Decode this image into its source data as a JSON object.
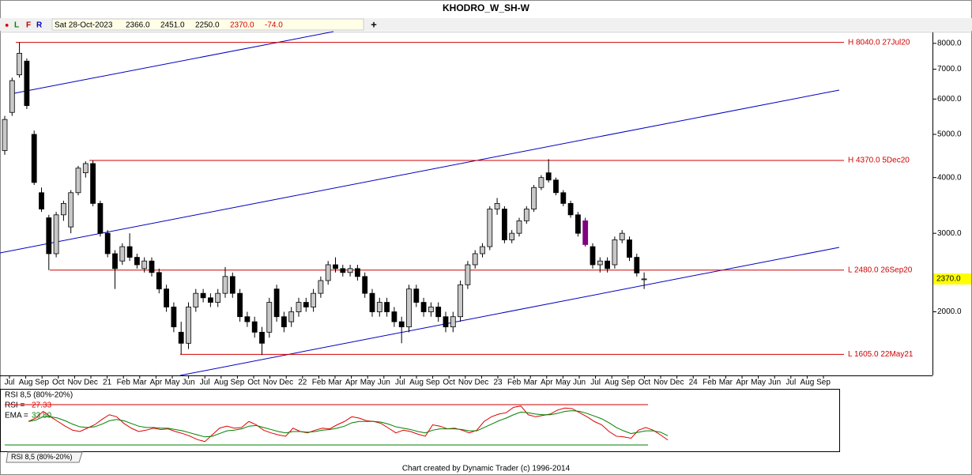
{
  "header": {
    "title": "KHODRO_W_SH-W"
  },
  "toolbar": {
    "indicators": [
      "●",
      "L",
      "F",
      "R"
    ],
    "date": "Sat 28-Oct-2023",
    "open": "2366.0",
    "high": "2451.0",
    "low": "2250.0",
    "close": "2370.0",
    "change": "-74.0",
    "add": "+"
  },
  "chart_data": {
    "type": "candlestick",
    "log_scale": true,
    "ylim": [
      1440,
      8500
    ],
    "yticks": [
      {
        "value": 8000,
        "label": "8000.0"
      },
      {
        "value": 7000,
        "label": "7000.0"
      },
      {
        "value": 6000,
        "label": "6000.0"
      },
      {
        "value": 5000,
        "label": "5000.0"
      },
      {
        "value": 4000,
        "label": "4000.0"
      },
      {
        "value": 3000,
        "label": "3000.0"
      },
      {
        "value": 2000,
        "label": "2000.0"
      }
    ],
    "last_price": {
      "value": 2370,
      "label": "2370.0"
    },
    "colors": {
      "up": "#c8c8c8",
      "down": "#000000",
      "highlight": "#800080",
      "level": "#d00000",
      "channel": "#0000c0"
    },
    "highlight_index": 79,
    "x_labels": [
      "Jul",
      "Aug",
      "Sep",
      "Oct",
      "Nov",
      "Dec",
      "21",
      "Feb",
      "Mar",
      "Apr",
      "May",
      "Jun",
      "Jul",
      "Aug",
      "Sep",
      "Oct",
      "Nov",
      "Dec",
      "22",
      "Feb",
      "Mar",
      "Apr",
      "May",
      "Jun",
      "Jul",
      "Aug",
      "Sep",
      "Oct",
      "Nov",
      "Dec",
      "23",
      "Feb",
      "Mar",
      "Apr",
      "May",
      "Jun",
      "Jul",
      "Aug",
      "Sep",
      "Oct",
      "Nov",
      "Dec",
      "24",
      "Feb",
      "Mar",
      "Apr",
      "May",
      "Jun",
      "Jul",
      "Aug",
      "Sep"
    ],
    "levels": [
      {
        "label": "H 8040.0 27Jul20",
        "value": 8040
      },
      {
        "label": "H 4370.0 5Dec20",
        "value": 4370
      },
      {
        "label": "L 2480.0 26Sep20",
        "value": 2480
      },
      {
        "label": "L 1605.0 22May21",
        "value": 1605
      }
    ],
    "candles": [
      [
        4600,
        5500,
        4500,
        5400
      ],
      [
        5600,
        6700,
        5500,
        6600
      ],
      [
        6800,
        8040,
        6700,
        7600
      ],
      [
        7300,
        7400,
        5700,
        5800
      ],
      [
        5000,
        5100,
        3850,
        3900
      ],
      [
        3700,
        3800,
        3350,
        3400
      ],
      [
        3250,
        3300,
        2480,
        2700
      ],
      [
        2700,
        3350,
        2650,
        3300
      ],
      [
        3300,
        3550,
        3200,
        3500
      ],
      [
        3100,
        3750,
        3000,
        3700
      ],
      [
        3700,
        4250,
        3650,
        4200
      ],
      [
        4100,
        4350,
        4000,
        4300
      ],
      [
        4300,
        4370,
        3450,
        3500
      ],
      [
        3500,
        3550,
        2950,
        3000
      ],
      [
        3000,
        3050,
        2650,
        2700
      ],
      [
        2700,
        2750,
        2250,
        2500
      ],
      [
        2600,
        2850,
        2550,
        2800
      ],
      [
        2800,
        3000,
        2600,
        2650
      ],
      [
        2650,
        2700,
        2500,
        2550
      ],
      [
        2500,
        2650,
        2450,
        2600
      ],
      [
        2600,
        2650,
        2400,
        2450
      ],
      [
        2450,
        2500,
        2200,
        2250
      ],
      [
        2250,
        2300,
        2000,
        2050
      ],
      [
        2050,
        2100,
        1800,
        1850
      ],
      [
        1800,
        1900,
        1605,
        1700
      ],
      [
        1700,
        2100,
        1650,
        2050
      ],
      [
        2050,
        2250,
        2000,
        2200
      ],
      [
        2200,
        2250,
        2100,
        2150
      ],
      [
        2150,
        2200,
        2050,
        2100
      ],
      [
        2100,
        2250,
        2050,
        2200
      ],
      [
        2200,
        2520,
        2150,
        2400
      ],
      [
        2400,
        2450,
        2150,
        2200
      ],
      [
        2200,
        2250,
        1900,
        1950
      ],
      [
        1950,
        2000,
        1850,
        1900
      ],
      [
        1900,
        1950,
        1750,
        1800
      ],
      [
        1800,
        1850,
        1600,
        1700
      ],
      [
        1800,
        2150,
        1750,
        2100
      ],
      [
        2250,
        2300,
        1900,
        1950
      ],
      [
        1950,
        2000,
        1800,
        1850
      ],
      [
        1900,
        2050,
        1850,
        2000
      ],
      [
        2000,
        2150,
        1950,
        2100
      ],
      [
        2100,
        2150,
        2000,
        2050
      ],
      [
        2050,
        2250,
        2000,
        2200
      ],
      [
        2200,
        2400,
        2150,
        2350
      ],
      [
        2350,
        2600,
        2300,
        2550
      ],
      [
        2550,
        2650,
        2450,
        2500
      ],
      [
        2500,
        2550,
        2400,
        2450
      ],
      [
        2450,
        2550,
        2400,
        2500
      ],
      [
        2500,
        2550,
        2350,
        2400
      ],
      [
        2400,
        2450,
        2150,
        2200
      ],
      [
        2200,
        2250,
        1950,
        2000
      ],
      [
        2000,
        2150,
        1950,
        2100
      ],
      [
        2100,
        2150,
        1950,
        2000
      ],
      [
        2000,
        2050,
        1850,
        1900
      ],
      [
        1900,
        1950,
        1700,
        1850
      ],
      [
        1850,
        2300,
        1800,
        2250
      ],
      [
        2250,
        2300,
        2050,
        2100
      ],
      [
        2100,
        2150,
        1950,
        2000
      ],
      [
        2000,
        2100,
        1950,
        2050
      ],
      [
        2050,
        2100,
        1900,
        1950
      ],
      [
        1950,
        2000,
        1800,
        1850
      ],
      [
        1850,
        2000,
        1800,
        1950
      ],
      [
        1950,
        2350,
        1900,
        2300
      ],
      [
        2300,
        2600,
        2250,
        2550
      ],
      [
        2550,
        2750,
        2500,
        2700
      ],
      [
        2700,
        2850,
        2650,
        2800
      ],
      [
        2800,
        3450,
        2750,
        3400
      ],
      [
        3400,
        3600,
        3300,
        3500
      ],
      [
        3400,
        3450,
        2850,
        2900
      ],
      [
        2900,
        3050,
        2850,
        3000
      ],
      [
        3000,
        3250,
        2950,
        3200
      ],
      [
        3200,
        3450,
        3150,
        3400
      ],
      [
        3400,
        3850,
        3350,
        3800
      ],
      [
        3800,
        4050,
        3750,
        4000
      ],
      [
        4100,
        4400,
        3900,
        3950
      ],
      [
        3950,
        4000,
        3650,
        3700
      ],
      [
        3700,
        3750,
        3450,
        3500
      ],
      [
        3500,
        3550,
        3250,
        3300
      ],
      [
        3300,
        3350,
        2950,
        3000
      ],
      [
        3200,
        3250,
        2800,
        2830
      ],
      [
        2800,
        2850,
        2500,
        2550
      ],
      [
        2550,
        2650,
        2450,
        2600
      ],
      [
        2600,
        2650,
        2450,
        2500
      ],
      [
        2550,
        2950,
        2500,
        2900
      ],
      [
        2900,
        3050,
        2850,
        3000
      ],
      [
        2900,
        2950,
        2600,
        2650
      ],
      [
        2650,
        2700,
        2400,
        2444
      ],
      [
        2366,
        2451,
        2250,
        2370
      ]
    ],
    "rsi": {
      "title": "RSI 8,5 (80%-20%)",
      "rsi_label": "RSI =",
      "rsi_value": "27.33",
      "ema_label": "EMA =",
      "ema_value": "33.80",
      "ylim": [
        0,
        100
      ],
      "levels": [
        80,
        20
      ],
      "series": [
        {
          "name": "RSI",
          "color": "#e00000",
          "values": [
            55,
            60,
            70,
            62,
            55,
            48,
            42,
            40,
            45,
            50,
            58,
            65,
            62,
            52,
            45,
            40,
            42,
            45,
            43,
            44,
            40,
            37,
            33,
            28,
            25,
            35,
            45,
            48,
            45,
            46,
            55,
            50,
            42,
            38,
            35,
            33,
            45,
            40,
            38,
            42,
            45,
            44,
            50,
            55,
            62,
            60,
            56,
            55,
            52,
            45,
            38,
            42,
            40,
            36,
            33,
            50,
            48,
            44,
            45,
            42,
            38,
            42,
            55,
            62,
            66,
            68,
            76,
            78,
            65,
            62,
            64,
            66,
            72,
            75,
            74,
            68,
            62,
            55,
            50,
            40,
            33,
            32,
            30,
            42,
            46,
            42,
            35,
            27.33
          ]
        },
        {
          "name": "EMA",
          "color": "#008000",
          "values": [
            55,
            57,
            62,
            62,
            60,
            56,
            51,
            47,
            46,
            47,
            51,
            56,
            58,
            56,
            52,
            48,
            46,
            46,
            45,
            45,
            43,
            41,
            38,
            35,
            32,
            33,
            37,
            41,
            42,
            44,
            48,
            49,
            46,
            43,
            40,
            38,
            40,
            40,
            39,
            40,
            42,
            43,
            45,
            48,
            53,
            55,
            55,
            55,
            54,
            51,
            47,
            45,
            43,
            40,
            38,
            42,
            44,
            44,
            44,
            43,
            41,
            41,
            46,
            51,
            56,
            60,
            65,
            69,
            68,
            66,
            65,
            65,
            67,
            70,
            71,
            70,
            67,
            63,
            59,
            53,
            46,
            41,
            37,
            39,
            41,
            41,
            39,
            33.8
          ]
        }
      ]
    }
  },
  "tab": {
    "label": "RSI 8,5 (80%-20%)"
  },
  "footer": {
    "text": "Chart created by Dynamic Trader  (c) 1996-2014"
  }
}
